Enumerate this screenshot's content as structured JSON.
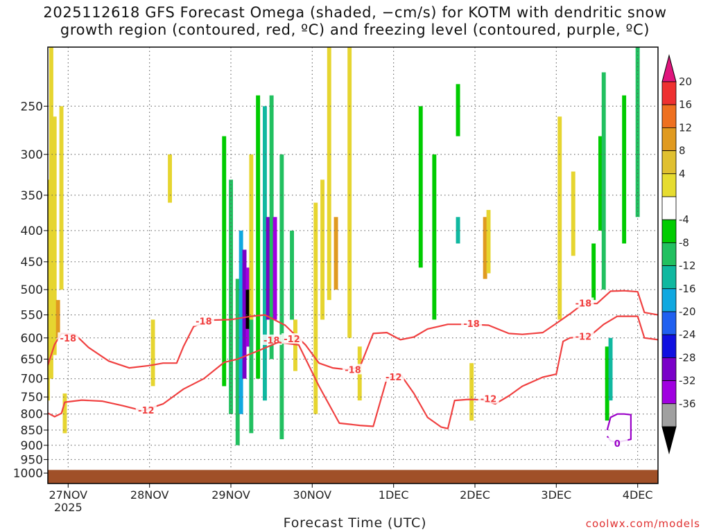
{
  "chart_data": {
    "type": "heatmap",
    "title_line1": "2025112618 GFS Forecast Omega (shaded, −cm/s) for KOTM with dendritic snow",
    "title_line2": "growth region (contoured, red, ºC) and freezing level (contoured, purple, ºC)",
    "xlabel": "Forecast Time (UTC)",
    "credit": "coolwx.com/models",
    "x_ticks": [
      "27NOV",
      "28NOV",
      "29NOV",
      "30NOV",
      "1DEC",
      "2DEC",
      "3DEC",
      "4DEC"
    ],
    "x_tick_hours": [
      6,
      30,
      54,
      78,
      102,
      126,
      150,
      174
    ],
    "x_year": "2025",
    "xlim_hours": [
      0,
      180
    ],
    "y_ticks": [
      250,
      300,
      350,
      400,
      450,
      500,
      550,
      600,
      650,
      700,
      750,
      800,
      850,
      900,
      950,
      1000
    ],
    "ylim_hPa": [
      200,
      1040
    ],
    "colorbar": {
      "labels": [
        "20",
        "16",
        "12",
        "8",
        "4",
        "-4",
        "-8",
        "-12",
        "-16",
        "-20",
        "-24",
        "-28",
        "-32",
        "-36"
      ],
      "colors": [
        "#e0157d",
        "#ee3030",
        "#ee7020",
        "#e09a20",
        "#e0c030",
        "#e6dc30",
        "#ffffff",
        "#00cc00",
        "#22c060",
        "#10b8a0",
        "#10a8e0",
        "#2060f0",
        "#1010e0",
        "#7a00c8",
        "#a000e0",
        "#a0a0a0",
        "#000000"
      ]
    },
    "omega_cells": [
      {
        "t": 0,
        "p0": 330,
        "p1": 760,
        "v": 5
      },
      {
        "t": 1,
        "p0": 200,
        "p1": 700,
        "v": 5
      },
      {
        "t": 2,
        "p0": 260,
        "p1": 640,
        "v": 6
      },
      {
        "t": 3,
        "p0": 520,
        "p1": 600,
        "v": 9
      },
      {
        "t": 4,
        "p0": 250,
        "p1": 500,
        "v": 5
      },
      {
        "t": 5,
        "p0": 740,
        "p1": 860,
        "v": 5
      },
      {
        "t": 31,
        "p0": 560,
        "p1": 720,
        "v": 5
      },
      {
        "t": 36,
        "p0": 300,
        "p1": 360,
        "v": 5
      },
      {
        "t": 52,
        "p0": 280,
        "p1": 720,
        "v": -7
      },
      {
        "t": 54,
        "p0": 330,
        "p1": 800,
        "v": -8
      },
      {
        "t": 56,
        "p0": 480,
        "p1": 900,
        "v": -10
      },
      {
        "t": 57,
        "p0": 400,
        "p1": 800,
        "v": -18
      },
      {
        "t": 58,
        "p0": 430,
        "p1": 700,
        "v": -24
      },
      {
        "t": 59,
        "p0": 460,
        "p1": 620,
        "v": -30
      },
      {
        "t": 59,
        "p0": 500,
        "p1": 580,
        "v": -36
      },
      {
        "t": 60,
        "p0": 300,
        "p1": 560,
        "v": 6
      },
      {
        "t": 60,
        "p0": 560,
        "p1": 860,
        "v": -9
      },
      {
        "t": 62,
        "p0": 240,
        "p1": 700,
        "v": -7
      },
      {
        "t": 64,
        "p0": 250,
        "p1": 760,
        "v": -12
      },
      {
        "t": 65,
        "p0": 380,
        "p1": 560,
        "v": -26
      },
      {
        "t": 66,
        "p0": 240,
        "p1": 650,
        "v": -11
      },
      {
        "t": 67,
        "p0": 380,
        "p1": 560,
        "v": -28
      },
      {
        "t": 69,
        "p0": 300,
        "p1": 880,
        "v": -8
      },
      {
        "t": 72,
        "p0": 400,
        "p1": 560,
        "v": -10
      },
      {
        "t": 73,
        "p0": 560,
        "p1": 680,
        "v": 5
      },
      {
        "t": 79,
        "p0": 360,
        "p1": 800,
        "v": 5
      },
      {
        "t": 81,
        "p0": 330,
        "p1": 560,
        "v": 6
      },
      {
        "t": 83,
        "p0": 200,
        "p1": 520,
        "v": 7
      },
      {
        "t": 85,
        "p0": 380,
        "p1": 500,
        "v": 9
      },
      {
        "t": 89,
        "p0": 200,
        "p1": 600,
        "v": 5
      },
      {
        "t": 92,
        "p0": 620,
        "p1": 760,
        "v": 5
      },
      {
        "t": 110,
        "p0": 250,
        "p1": 460,
        "v": -6
      },
      {
        "t": 114,
        "p0": 300,
        "p1": 560,
        "v": -5
      },
      {
        "t": 121,
        "p0": 230,
        "p1": 280,
        "v": -5
      },
      {
        "t": 121,
        "p0": 380,
        "p1": 420,
        "v": -12
      },
      {
        "t": 125,
        "p0": 660,
        "p1": 820,
        "v": 5
      },
      {
        "t": 129,
        "p0": 380,
        "p1": 480,
        "v": 9
      },
      {
        "t": 130,
        "p0": 370,
        "p1": 470,
        "v": 6
      },
      {
        "t": 151,
        "p0": 260,
        "p1": 560,
        "v": 5
      },
      {
        "t": 155,
        "p0": 320,
        "p1": 440,
        "v": 5
      },
      {
        "t": 161,
        "p0": 420,
        "p1": 520,
        "v": -5
      },
      {
        "t": 163,
        "p0": 280,
        "p1": 400,
        "v": -5
      },
      {
        "t": 164,
        "p0": 220,
        "p1": 500,
        "v": -9
      },
      {
        "t": 165,
        "p0": 620,
        "p1": 820,
        "v": -7
      },
      {
        "t": 166,
        "p0": 600,
        "p1": 760,
        "v": -13
      },
      {
        "t": 170,
        "p0": 240,
        "p1": 420,
        "v": -6
      },
      {
        "t": 174,
        "p0": 200,
        "p1": 380,
        "v": -10
      }
    ],
    "contours": [
      {
        "name": "dgz-minus18",
        "color": "#f04040",
        "label": "-18",
        "label_points": [
          [
            6,
            600
          ],
          [
            46,
            563
          ],
          [
            66,
            605
          ],
          [
            90,
            676
          ],
          [
            125,
            568
          ],
          [
            158,
            526
          ]
        ],
        "points": [
          [
            0,
            665
          ],
          [
            2,
            615
          ],
          [
            4,
            590
          ],
          [
            8,
            592
          ],
          [
            12,
            622
          ],
          [
            18,
            655
          ],
          [
            24,
            672
          ],
          [
            30,
            666
          ],
          [
            34,
            660
          ],
          [
            38,
            660
          ],
          [
            40,
            620
          ],
          [
            43,
            575
          ],
          [
            48,
            561
          ],
          [
            54,
            560
          ],
          [
            60,
            553
          ],
          [
            64,
            550
          ],
          [
            70,
            572
          ],
          [
            76,
            616
          ],
          [
            80,
            660
          ],
          [
            84,
            672
          ],
          [
            88,
            676
          ],
          [
            92,
            671
          ],
          [
            96,
            590
          ],
          [
            100,
            588
          ],
          [
            104,
            604
          ],
          [
            108,
            598
          ],
          [
            112,
            580
          ],
          [
            118,
            570
          ],
          [
            124,
            570
          ],
          [
            130,
            572
          ],
          [
            136,
            590
          ],
          [
            140,
            592
          ],
          [
            146,
            588
          ],
          [
            150,
            568
          ],
          [
            154,
            548
          ],
          [
            158,
            527
          ],
          [
            162,
            527
          ],
          [
            166,
            503
          ],
          [
            170,
            502
          ],
          [
            174,
            504
          ],
          [
            176,
            545
          ],
          [
            180,
            550
          ]
        ]
      },
      {
        "name": "dgz-minus12",
        "color": "#f04040",
        "label": "-12",
        "label_points": [
          [
            29,
            788
          ],
          [
            72,
            602
          ],
          [
            102,
            695
          ],
          [
            130,
            755
          ],
          [
            158,
            596
          ]
        ],
        "points": [
          [
            0,
            797
          ],
          [
            2,
            808
          ],
          [
            4,
            798
          ],
          [
            5,
            765
          ],
          [
            10,
            759
          ],
          [
            16,
            762
          ],
          [
            22,
            775
          ],
          [
            28,
            790
          ],
          [
            34,
            770
          ],
          [
            40,
            728
          ],
          [
            46,
            700
          ],
          [
            52,
            658
          ],
          [
            56,
            650
          ],
          [
            62,
            630
          ],
          [
            68,
            610
          ],
          [
            74,
            616
          ],
          [
            80,
            720
          ],
          [
            86,
            828
          ],
          [
            92,
            835
          ],
          [
            96,
            838
          ],
          [
            100,
            700
          ],
          [
            104,
            688
          ],
          [
            108,
            740
          ],
          [
            112,
            810
          ],
          [
            116,
            840
          ],
          [
            118,
            845
          ],
          [
            120,
            760
          ],
          [
            124,
            757
          ],
          [
            128,
            758
          ],
          [
            132,
            770
          ],
          [
            136,
            747
          ],
          [
            140,
            720
          ],
          [
            146,
            696
          ],
          [
            150,
            688
          ],
          [
            152,
            608
          ],
          [
            154,
            600
          ],
          [
            160,
            595
          ],
          [
            164,
            570
          ],
          [
            168,
            553
          ],
          [
            174,
            553
          ],
          [
            176,
            600
          ],
          [
            180,
            604
          ]
        ]
      },
      {
        "name": "freezing-level",
        "color": "#9a00c8",
        "label": "0",
        "label_points": [
          [
            168,
            893
          ]
        ],
        "points": [
          [
            165,
            850
          ],
          [
            166,
            810
          ],
          [
            168,
            800
          ],
          [
            170,
            800
          ],
          [
            172,
            802
          ],
          [
            172,
            880
          ],
          [
            170,
            885
          ],
          [
            168,
            890
          ],
          [
            166,
            885
          ],
          [
            165,
            870
          ]
        ]
      }
    ],
    "terrain_color": "#a05028",
    "terrain_top_hPa": 988
  }
}
